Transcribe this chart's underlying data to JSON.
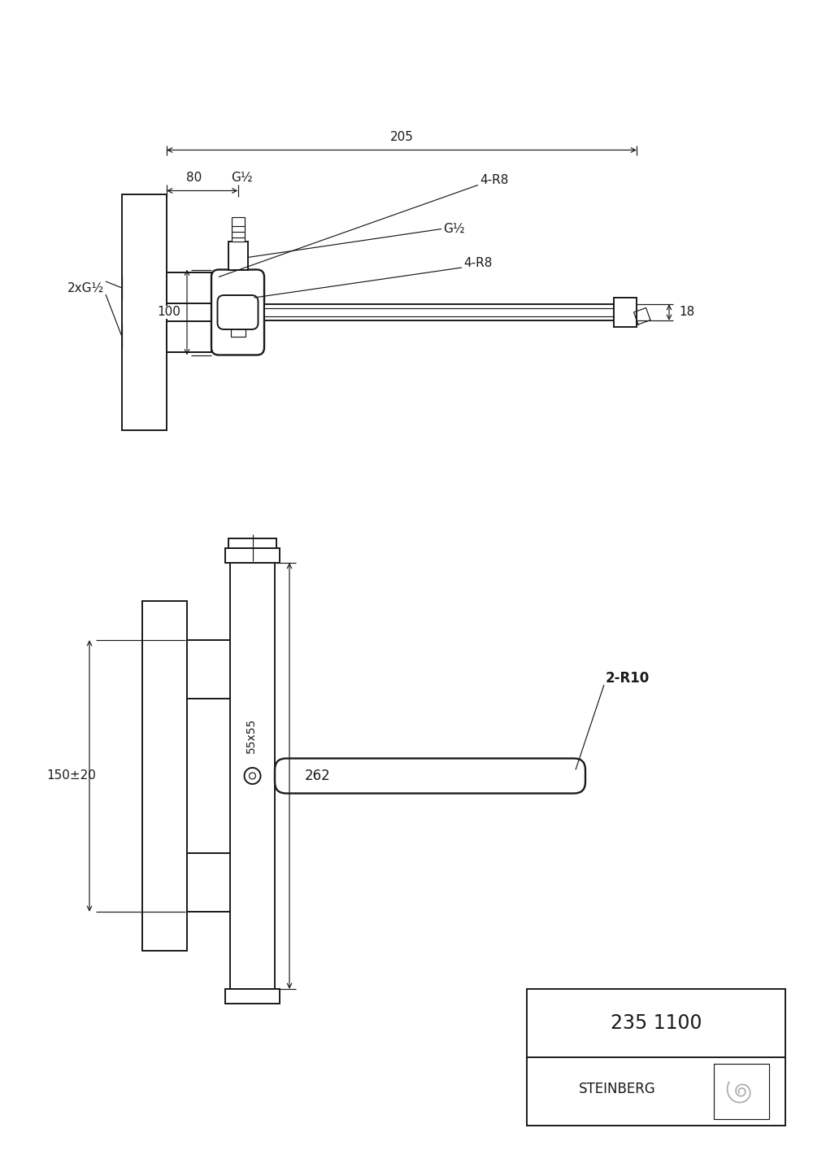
{
  "bg": "#ffffff",
  "lc": "#1a1a1a",
  "anno_4R8_top": "4-R8",
  "anno_4R8_mid": "4-R8",
  "anno_18": "18",
  "anno_100": "100",
  "anno_2xG12": "2xG½",
  "anno_G12": "G½",
  "anno_80": "80",
  "anno_205": "205",
  "anno_150pm20": "150±20",
  "anno_55x55": "55x55",
  "anno_262": "262",
  "anno_2R10": "2-R10",
  "title_number": "235 1100",
  "brand": "STEINBERG"
}
